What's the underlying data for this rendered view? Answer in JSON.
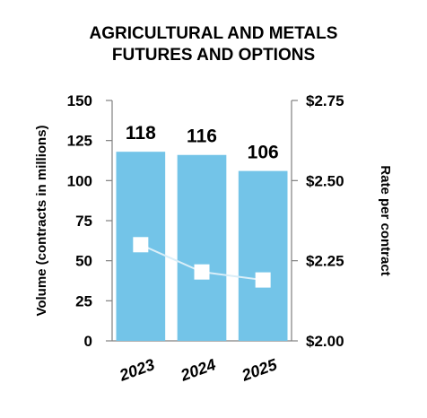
{
  "chart_data": {
    "type": "bar",
    "title_lines": [
      "AGRICULTURAL AND METALS",
      "FUTURES AND OPTIONS"
    ],
    "categories": [
      "2023",
      "2024",
      "2025"
    ],
    "series": [
      {
        "values": [
          118,
          116,
          106
        ],
        "color": "#73C4E8",
        "axis": "left",
        "kind": "bar",
        "data_labels": [
          "118",
          "116",
          "106"
        ]
      },
      {
        "values": [
          2.3,
          2.215,
          2.19
        ],
        "color": "#FFFFFF",
        "line_color": "#D9EEF8",
        "axis": "right",
        "kind": "line"
      }
    ],
    "ylabel": "Volume (contracts in millions)",
    "y2label": "Rate per contract",
    "ylim": [
      0,
      150
    ],
    "y2lim": [
      2.0,
      2.75
    ],
    "yticks": [
      "0",
      "25",
      "50",
      "75",
      "100",
      "125",
      "150"
    ],
    "y2ticks": [
      "$2.00",
      "$2.25",
      "$2.50",
      "$2.75"
    ],
    "axis_color": "#808080",
    "grid": false,
    "legend": "none"
  }
}
